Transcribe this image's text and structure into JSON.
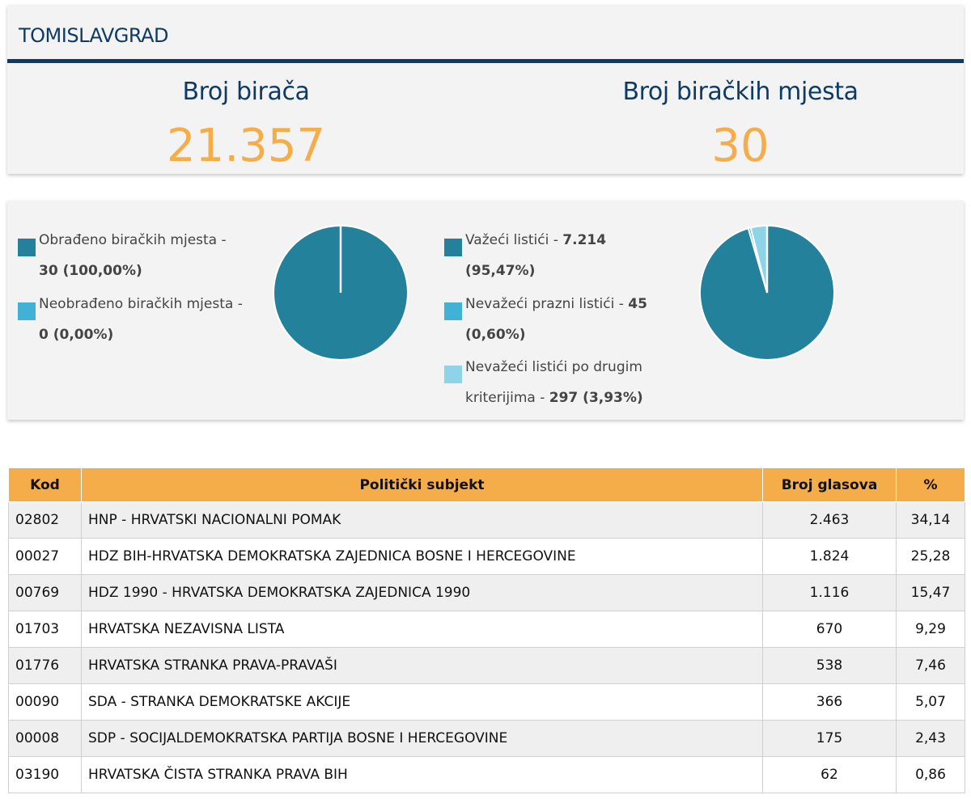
{
  "header": {
    "title": "TOMISLAVGRAD",
    "stats": [
      {
        "label": "Broj birača",
        "value": "21.357"
      },
      {
        "label": "Broj biračkih mjesta",
        "value": "30"
      }
    ]
  },
  "colors": {
    "navy": "#0e3a64",
    "accent_orange": "#f5ad4a",
    "slice_dark": "#23819c",
    "slice_mid": "#41b2d3",
    "slice_light": "#8ed3e8"
  },
  "pies": {
    "processed": {
      "legend": [
        {
          "text": "Obrađeno biračkih mjesta -",
          "value": "30 (100,00%)",
          "color": "#23819c"
        },
        {
          "text": "Neobrađeno biračkih mjesta -",
          "value": "0 (0,00%)",
          "color": "#41b2d3"
        }
      ]
    },
    "ballots": {
      "legend": [
        {
          "text": "Važeći listići - ",
          "value_inline": "7.214",
          "value_line2": "(95,47%)",
          "color": "#23819c"
        },
        {
          "text": "Nevažeći prazni listići - ",
          "value_inline": "45",
          "value_line2": "(0,60%)",
          "color": "#41b2d3"
        },
        {
          "text": "Nevažeći listići po drugim",
          "text_line2": "kriterijima - ",
          "value_line2": "297 (3,93%)",
          "color": "#8ed3e8"
        }
      ]
    }
  },
  "chart_data": [
    {
      "type": "pie",
      "labels": [
        "Obrađeno biračkih mjesta",
        "Neobrađeno biračkih mjesta"
      ],
      "values": [
        30,
        0
      ],
      "percent": [
        100.0,
        0.0
      ],
      "colors": [
        "#23819c",
        "#41b2d3"
      ]
    },
    {
      "type": "pie",
      "labels": [
        "Važeći listići",
        "Nevažeći prazni listići",
        "Nevažeći listići po drugim kriterijima"
      ],
      "values": [
        7214,
        45,
        297
      ],
      "percent": [
        95.47,
        0.6,
        3.93
      ],
      "colors": [
        "#23819c",
        "#41b2d3",
        "#8ed3e8"
      ]
    }
  ],
  "table": {
    "headers": [
      "Kod",
      "Politički subjekt",
      "Broj glasova",
      "%"
    ],
    "rows": [
      [
        "02802",
        "HNP - HRVATSKI NACIONALNI POMAK",
        "2.463",
        "34,14"
      ],
      [
        "00027",
        "HDZ BIH-HRVATSKA DEMOKRATSKA ZAJEDNICA BOSNE I HERCEGOVINE",
        "1.824",
        "25,28"
      ],
      [
        "00769",
        "HDZ 1990 - HRVATSKA DEMOKRATSKA ZAJEDNICA 1990",
        "1.116",
        "15,47"
      ],
      [
        "01703",
        "HRVATSKA NEZAVISNA LISTA",
        "670",
        "9,29"
      ],
      [
        "01776",
        "HRVATSKA STRANKA PRAVA-PRAVAŠI",
        "538",
        "7,46"
      ],
      [
        "00090",
        "SDA - STRANKA DEMOKRATSKE AKCIJE",
        "366",
        "5,07"
      ],
      [
        "00008",
        "SDP - SOCIJALDEMOKRATSKA PARTIJA BOSNE I HERCEGOVINE",
        "175",
        "2,43"
      ],
      [
        "03190",
        "HRVATSKA ČISTA STRANKA PRAVA BIH",
        "62",
        "0,86"
      ]
    ]
  }
}
